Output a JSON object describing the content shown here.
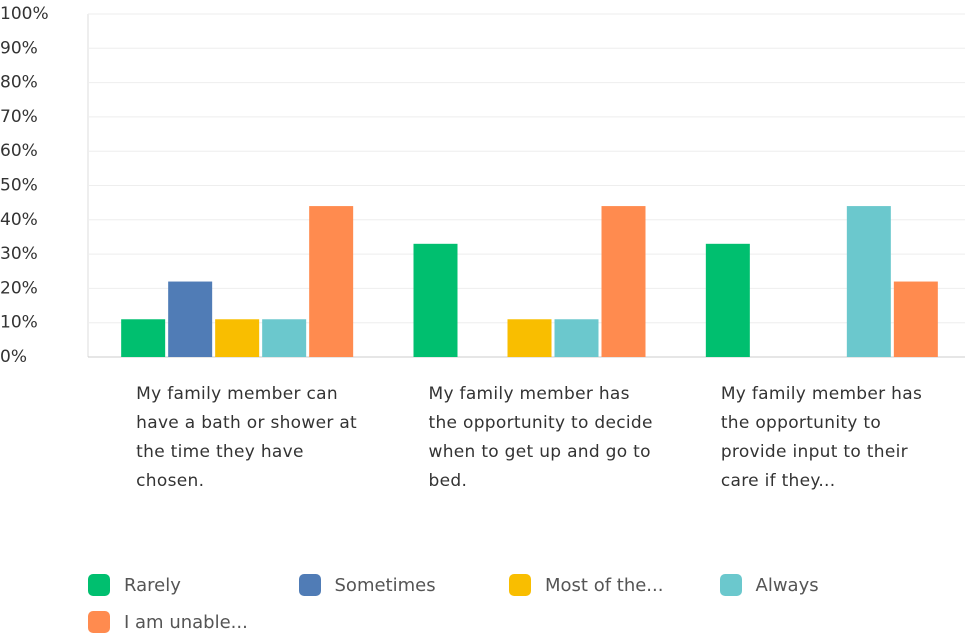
{
  "chart_data": {
    "type": "bar",
    "categories": [
      "My family member can have a bath or shower at the time they have chosen.",
      "My family member has the opportunity to decide when to get up and go to bed.",
      "My family member has the opportunity to provide input to their care if they..."
    ],
    "series": [
      {
        "name": "Rarely",
        "color": "#00bf6f",
        "values": [
          11,
          33,
          33
        ]
      },
      {
        "name": "Sometimes",
        "color": "#507cb6",
        "values": [
          22,
          0,
          0
        ]
      },
      {
        "name": "Most of the...",
        "color": "#f9be00",
        "values": [
          11,
          11,
          0
        ]
      },
      {
        "name": "Always",
        "color": "#6bc8cd",
        "values": [
          11,
          11,
          44
        ]
      },
      {
        "name": "I am unable...",
        "color": "#ff8b4f",
        "values": [
          44,
          44,
          22
        ]
      }
    ],
    "ylim": [
      0,
      100
    ],
    "yticks": [
      {
        "value": 0,
        "label": "0%"
      },
      {
        "value": 10,
        "label": "10%"
      },
      {
        "value": 20,
        "label": "20%"
      },
      {
        "value": 30,
        "label": "30%"
      },
      {
        "value": 40,
        "label": "40%"
      },
      {
        "value": 50,
        "label": "50%"
      },
      {
        "value": 60,
        "label": "60%"
      },
      {
        "value": 70,
        "label": "70%"
      },
      {
        "value": 80,
        "label": "80%"
      },
      {
        "value": 90,
        "label": "90%"
      },
      {
        "value": 100,
        "label": "100%"
      }
    ],
    "grid": true
  }
}
